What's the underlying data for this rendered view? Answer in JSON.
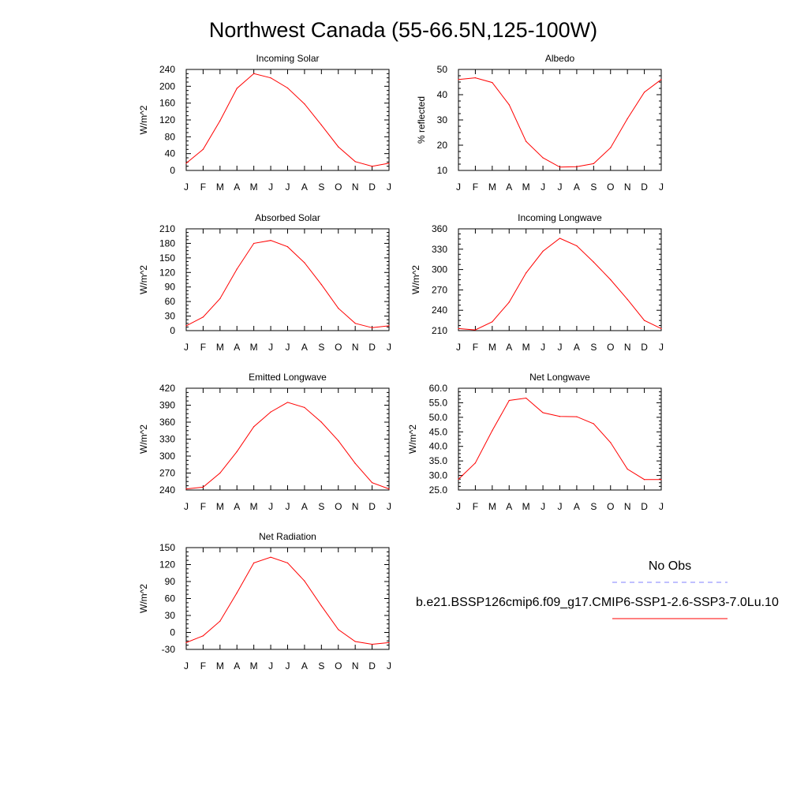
{
  "title": "Northwest Canada (55-66.5N,125-100W)",
  "colors": {
    "model_line": "#ff0000",
    "obs_line": "#8080ff",
    "axis": "#000000"
  },
  "legend": {
    "obs_label": "No Obs",
    "model_label": "b.e21.BSSP126cmip6.f09_g17.CMIP6-SSP1-2.6-SSP3-7.0Lu.10"
  },
  "chart_data": [
    {
      "type": "line",
      "title": "Incoming Solar",
      "xlabel": "",
      "ylabel": "W/m^2",
      "categories": [
        "J",
        "F",
        "M",
        "A",
        "M",
        "J",
        "J",
        "A",
        "S",
        "O",
        "N",
        "D",
        "J"
      ],
      "ylim": [
        0,
        240
      ],
      "yticks": [
        "0",
        "40",
        "80",
        "120",
        "160",
        "200",
        "240"
      ],
      "series": [
        {
          "values": [
            17,
            50,
            118,
            195,
            230,
            220,
            196,
            158,
            108,
            56,
            21,
            10,
            17
          ]
        }
      ]
    },
    {
      "type": "line",
      "title": "Albedo",
      "xlabel": "",
      "ylabel": "% reflected",
      "categories": [
        "J",
        "F",
        "M",
        "A",
        "M",
        "J",
        "J",
        "A",
        "S",
        "O",
        "N",
        "D",
        "J"
      ],
      "ylim": [
        10,
        50
      ],
      "yticks": [
        "10",
        "20",
        "30",
        "40",
        "50"
      ],
      "series": [
        {
          "values": [
            46,
            46.7,
            44.8,
            36,
            21.5,
            15,
            11.3,
            11.5,
            12.7,
            19,
            30.5,
            41,
            46
          ]
        }
      ]
    },
    {
      "type": "line",
      "title": "Absorbed Solar",
      "xlabel": "",
      "ylabel": "W/m^2",
      "categories": [
        "J",
        "F",
        "M",
        "A",
        "M",
        "J",
        "J",
        "A",
        "S",
        "O",
        "N",
        "D",
        "J"
      ],
      "ylim": [
        0,
        210
      ],
      "yticks": [
        "0",
        "30",
        "60",
        "90",
        "120",
        "150",
        "180",
        "210"
      ],
      "series": [
        {
          "values": [
            10,
            28,
            66,
            127,
            180,
            186,
            173,
            140,
            95,
            46,
            15,
            6,
            10
          ]
        }
      ]
    },
    {
      "type": "line",
      "title": "Incoming Longwave",
      "xlabel": "",
      "ylabel": "W/m^2",
      "categories": [
        "J",
        "F",
        "M",
        "A",
        "M",
        "J",
        "J",
        "A",
        "S",
        "O",
        "N",
        "D",
        "J"
      ],
      "ylim": [
        210,
        360
      ],
      "yticks": [
        "210",
        "240",
        "270",
        "300",
        "330",
        "360"
      ],
      "series": [
        {
          "values": [
            213,
            211,
            223,
            252,
            295,
            327,
            346,
            335,
            311,
            285,
            256,
            225,
            213
          ]
        }
      ]
    },
    {
      "type": "line",
      "title": "Emitted Longwave",
      "xlabel": "",
      "ylabel": "W/m^2",
      "categories": [
        "J",
        "F",
        "M",
        "A",
        "M",
        "J",
        "J",
        "A",
        "S",
        "O",
        "N",
        "D",
        "J"
      ],
      "ylim": [
        240,
        420
      ],
      "yticks": [
        "240",
        "270",
        "300",
        "330",
        "360",
        "390",
        "420"
      ],
      "series": [
        {
          "values": [
            242,
            245,
            270,
            308,
            352,
            378,
            395,
            386,
            360,
            327,
            287,
            253,
            242
          ]
        }
      ]
    },
    {
      "type": "line",
      "title": "Net Longwave",
      "xlabel": "",
      "ylabel": "W/m^2",
      "categories": [
        "J",
        "F",
        "M",
        "A",
        "M",
        "J",
        "J",
        "A",
        "S",
        "O",
        "N",
        "D",
        "J"
      ],
      "ylim": [
        25,
        60
      ],
      "yticks": [
        "25.0",
        "30.0",
        "35.0",
        "40.0",
        "45.0",
        "50.0",
        "55.0",
        "60.0"
      ],
      "series": [
        {
          "values": [
            28.7,
            34.3,
            45.4,
            55.8,
            56.6,
            51.6,
            50.3,
            50.2,
            47.8,
            41.3,
            32.2,
            28.6,
            28.6
          ]
        }
      ]
    },
    {
      "type": "line",
      "title": "Net Radiation",
      "xlabel": "",
      "ylabel": "W/m^2",
      "categories": [
        "J",
        "F",
        "M",
        "A",
        "M",
        "J",
        "J",
        "A",
        "S",
        "O",
        "N",
        "D",
        "J"
      ],
      "ylim": [
        -30,
        150
      ],
      "yticks": [
        "-30",
        "0",
        "30",
        "60",
        "90",
        "120",
        "150"
      ],
      "series": [
        {
          "values": [
            -18,
            -6,
            20,
            70,
            123,
            133,
            123,
            91,
            47,
            5,
            -16,
            -21,
            -18
          ]
        }
      ]
    }
  ]
}
